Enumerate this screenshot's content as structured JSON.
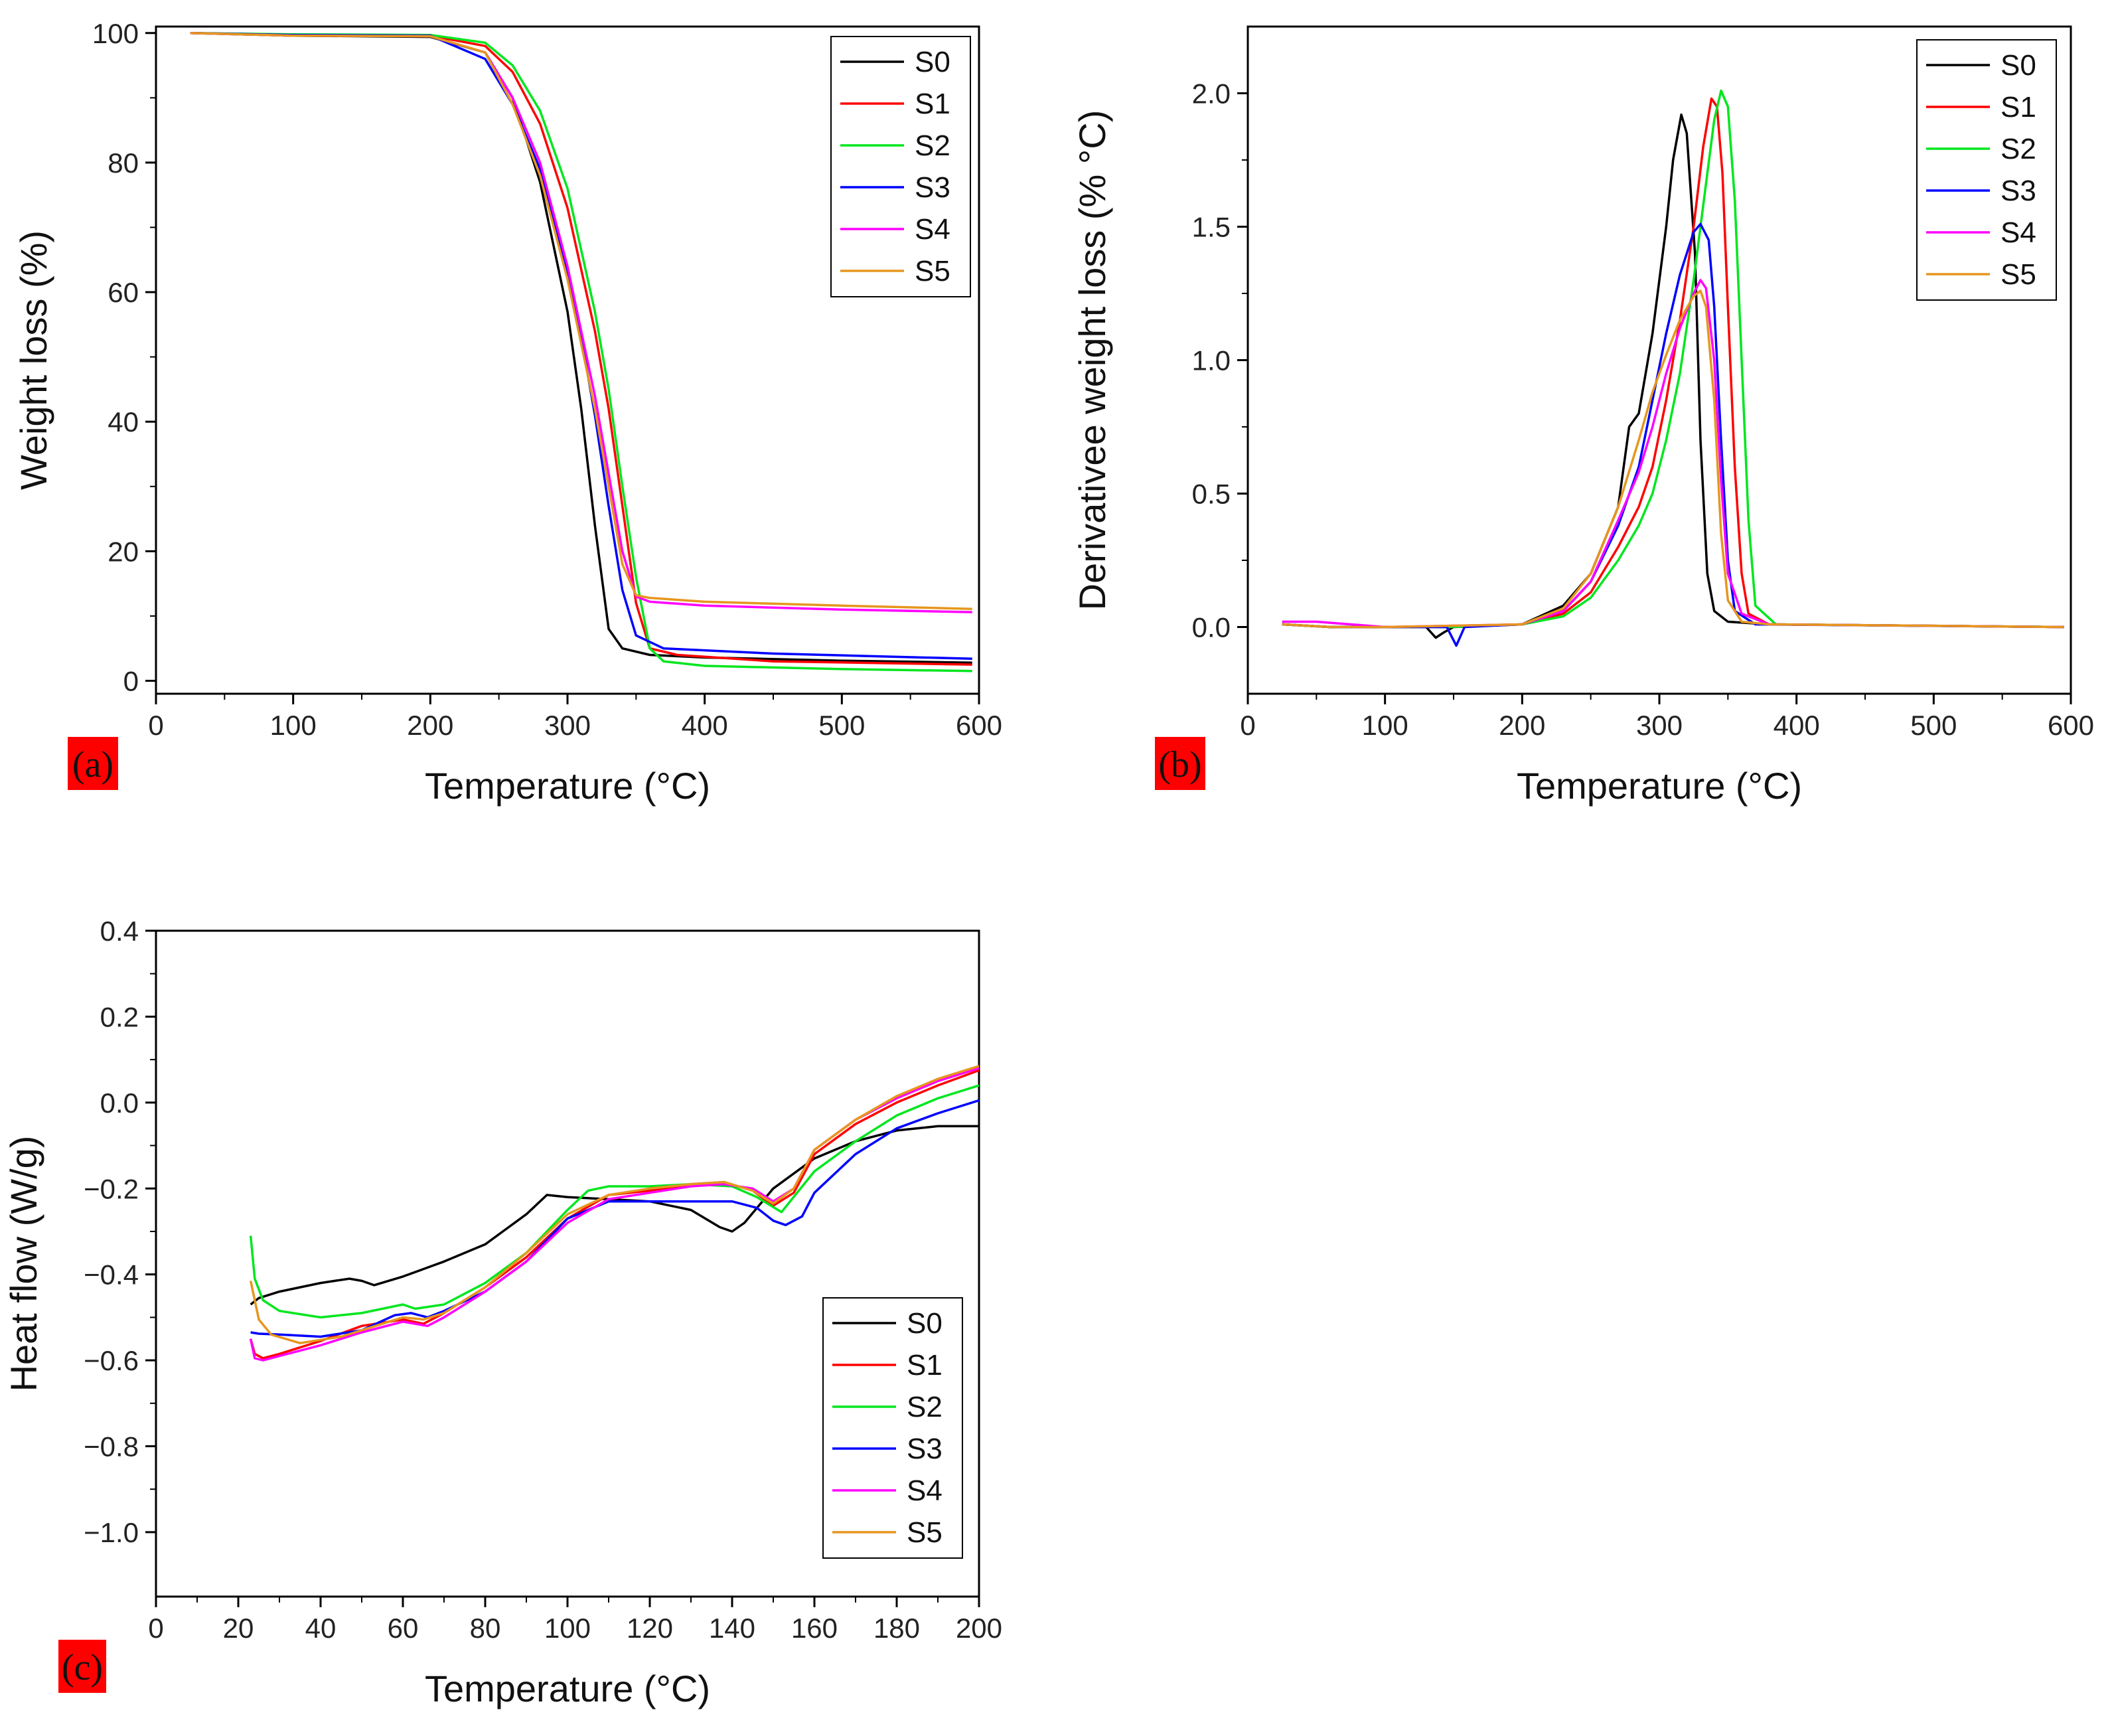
{
  "colors": {
    "S0": "#000000",
    "S1": "#ff0000",
    "S2": "#00e61e",
    "S3": "#0000ff",
    "S4": "#ff00ff",
    "S5": "#e6961e",
    "panel_label_bg": "#ff0000"
  },
  "chart_data": [
    {
      "type": "line",
      "panel_label": "(a)",
      "xlabel": "Temperature (°C)",
      "ylabel": "Weight loss (%)",
      "xlim": [
        0,
        600
      ],
      "ylim": [
        -2,
        101
      ],
      "xticks": [
        0,
        100,
        200,
        300,
        400,
        500,
        600
      ],
      "yticks": [
        0,
        20,
        40,
        60,
        80,
        100
      ],
      "xticklabels": [
        "0",
        "100",
        "200",
        "300",
        "400",
        "500",
        "600"
      ],
      "yticklabels": [
        "0",
        "20",
        "40",
        "60",
        "80",
        "100"
      ],
      "legend_position": "top-right",
      "series": [
        {
          "name": "S0",
          "x": [
            25,
            100,
            200,
            240,
            260,
            280,
            300,
            310,
            320,
            330,
            340,
            360,
            400,
            500,
            595
          ],
          "y": [
            100,
            99.6,
            99.4,
            97,
            90,
            77,
            57,
            42,
            24,
            8,
            5,
            4,
            3.6,
            3.1,
            2.8
          ]
        },
        {
          "name": "S1",
          "x": [
            25,
            100,
            200,
            240,
            260,
            280,
            300,
            320,
            330,
            340,
            350,
            360,
            380,
            450,
            595
          ],
          "y": [
            100,
            99.7,
            99.6,
            98,
            94,
            86,
            73,
            54,
            42,
            27,
            12,
            5,
            4,
            3,
            2.5
          ]
        },
        {
          "name": "S2",
          "x": [
            25,
            100,
            200,
            240,
            260,
            280,
            300,
            320,
            330,
            340,
            350,
            360,
            370,
            400,
            500,
            595
          ],
          "y": [
            100,
            99.8,
            99.7,
            98.5,
            95,
            88,
            76,
            57,
            45,
            30,
            16,
            5,
            3,
            2.3,
            1.8,
            1.5
          ]
        },
        {
          "name": "S3",
          "x": [
            25,
            100,
            200,
            240,
            260,
            280,
            300,
            310,
            320,
            330,
            340,
            350,
            370,
            450,
            595
          ],
          "y": [
            100,
            99.7,
            99.6,
            96,
            89,
            79,
            63,
            53,
            41,
            27,
            14,
            7,
            5,
            4.2,
            3.4
          ]
        },
        {
          "name": "S4",
          "x": [
            25,
            100,
            200,
            240,
            260,
            280,
            300,
            320,
            330,
            340,
            350,
            360,
            400,
            500,
            595
          ],
          "y": [
            100,
            99.6,
            99.5,
            97,
            90,
            80,
            64,
            44,
            32,
            20,
            13,
            12.2,
            11.6,
            11,
            10.6
          ]
        },
        {
          "name": "S5",
          "x": [
            25,
            100,
            200,
            240,
            260,
            280,
            300,
            320,
            330,
            340,
            350,
            360,
            400,
            500,
            595
          ],
          "y": [
            100,
            99.6,
            99.5,
            97,
            89,
            78,
            62,
            42,
            30,
            18,
            13.2,
            12.8,
            12.2,
            11.6,
            11.1
          ]
        }
      ]
    },
    {
      "type": "line",
      "panel_label": "(b)",
      "xlabel": "Temperature (°C)",
      "ylabel": "Derivativee weight loss (% °C)",
      "xlim": [
        0,
        600
      ],
      "ylim": [
        -0.25,
        2.25
      ],
      "xticks": [
        0,
        100,
        200,
        300,
        400,
        500,
        600
      ],
      "yticks": [
        0,
        0.5,
        1.0,
        1.5,
        2.0
      ],
      "xticklabels": [
        "0",
        "100",
        "200",
        "300",
        "400",
        "500",
        "600"
      ],
      "yticklabels": [
        "0.0",
        "0.5",
        "1.0",
        "1.5",
        "2.0"
      ],
      "legend_position": "top-right",
      "series": [
        {
          "name": "S0",
          "x": [
            25,
            60,
            100,
            130,
            137,
            143,
            150,
            200,
            230,
            250,
            270,
            278,
            285,
            295,
            305,
            310,
            316,
            320,
            326,
            330,
            335,
            340,
            350,
            380,
            595
          ],
          "y": [
            0.01,
            0.0,
            0.0,
            0.0,
            -0.04,
            -0.02,
            0.0,
            0.01,
            0.08,
            0.2,
            0.45,
            0.75,
            0.8,
            1.1,
            1.5,
            1.75,
            1.92,
            1.85,
            1.4,
            0.7,
            0.2,
            0.06,
            0.02,
            0.01,
            0.0
          ]
        },
        {
          "name": "S1",
          "x": [
            25,
            60,
            100,
            150,
            200,
            230,
            250,
            270,
            285,
            295,
            305,
            315,
            325,
            332,
            338,
            342,
            346,
            350,
            355,
            360,
            365,
            380,
            595
          ],
          "y": [
            0.01,
            0.0,
            0.0,
            0.0,
            0.01,
            0.05,
            0.13,
            0.3,
            0.45,
            0.6,
            0.85,
            1.15,
            1.5,
            1.8,
            1.98,
            1.95,
            1.7,
            1.2,
            0.6,
            0.2,
            0.05,
            0.01,
            0.0
          ]
        },
        {
          "name": "S2",
          "x": [
            25,
            60,
            100,
            150,
            200,
            230,
            250,
            270,
            285,
            295,
            305,
            315,
            325,
            335,
            340,
            345,
            350,
            355,
            360,
            365,
            370,
            385,
            595
          ],
          "y": [
            0.01,
            0.0,
            0.0,
            0.0,
            0.01,
            0.04,
            0.11,
            0.25,
            0.38,
            0.5,
            0.7,
            0.95,
            1.3,
            1.7,
            1.9,
            2.01,
            1.95,
            1.6,
            1.0,
            0.4,
            0.08,
            0.01,
            0.0
          ]
        },
        {
          "name": "S3",
          "x": [
            25,
            60,
            100,
            145,
            152,
            158,
            200,
            230,
            250,
            270,
            285,
            295,
            305,
            315,
            325,
            330,
            336,
            340,
            345,
            350,
            355,
            370,
            595
          ],
          "y": [
            0.01,
            0.0,
            0.0,
            0.0,
            -0.07,
            0.0,
            0.01,
            0.06,
            0.17,
            0.38,
            0.6,
            0.85,
            1.1,
            1.32,
            1.48,
            1.51,
            1.45,
            1.2,
            0.7,
            0.25,
            0.06,
            0.01,
            0.0
          ]
        },
        {
          "name": "S4",
          "x": [
            25,
            50,
            100,
            200,
            230,
            250,
            270,
            285,
            295,
            305,
            315,
            325,
            330,
            334,
            340,
            345,
            350,
            360,
            380,
            595
          ],
          "y": [
            0.02,
            0.02,
            0.0,
            0.01,
            0.06,
            0.17,
            0.4,
            0.58,
            0.75,
            0.95,
            1.12,
            1.25,
            1.3,
            1.27,
            1.0,
            0.55,
            0.2,
            0.05,
            0.01,
            0.0
          ]
        },
        {
          "name": "S5",
          "x": [
            25,
            60,
            100,
            200,
            230,
            250,
            270,
            285,
            295,
            305,
            315,
            325,
            330,
            334,
            340,
            345,
            350,
            360,
            380,
            595
          ],
          "y": [
            0.01,
            0.0,
            0.0,
            0.01,
            0.07,
            0.2,
            0.45,
            0.7,
            0.88,
            1.02,
            1.15,
            1.24,
            1.26,
            1.2,
            0.85,
            0.35,
            0.1,
            0.02,
            0.01,
            0.0
          ]
        }
      ]
    },
    {
      "type": "line",
      "panel_label": "(c)",
      "xlabel": "Temperature (°C)",
      "ylabel": "Heat flow (W/g)",
      "xlim": [
        0,
        200
      ],
      "ylim": [
        -1.15,
        0.4
      ],
      "xticks": [
        0,
        20,
        40,
        60,
        80,
        100,
        120,
        140,
        160,
        180,
        200
      ],
      "yticks": [
        -1.0,
        -0.8,
        -0.6,
        -0.4,
        -0.2,
        0.0,
        0.2,
        0.4
      ],
      "xticklabels": [
        "0",
        "20",
        "40",
        "60",
        "80",
        "100",
        "120",
        "140",
        "160",
        "180",
        "200"
      ],
      "yticklabels": [
        "−1.0",
        "−0.8",
        "−0.6",
        "−0.4",
        "−0.2",
        "0.0",
        "0.2",
        "0.4"
      ],
      "legend_position": "bottom-right",
      "series": [
        {
          "name": "S0",
          "x": [
            23,
            25,
            30,
            40,
            47,
            50,
            53,
            60,
            70,
            80,
            90,
            95,
            100,
            110,
            120,
            130,
            137,
            140,
            143,
            150,
            160,
            170,
            180,
            190,
            200
          ],
          "y": [
            -0.47,
            -0.455,
            -0.44,
            -0.42,
            -0.41,
            -0.415,
            -0.425,
            -0.405,
            -0.37,
            -0.33,
            -0.26,
            -0.215,
            -0.22,
            -0.225,
            -0.23,
            -0.25,
            -0.29,
            -0.3,
            -0.28,
            -0.2,
            -0.13,
            -0.09,
            -0.065,
            -0.055,
            -0.055
          ]
        },
        {
          "name": "S1",
          "x": [
            23,
            24,
            26,
            30,
            40,
            50,
            60,
            65,
            70,
            80,
            90,
            100,
            110,
            120,
            130,
            138,
            145,
            150,
            155,
            160,
            170,
            180,
            190,
            200
          ],
          "y": [
            -0.55,
            -0.585,
            -0.595,
            -0.585,
            -0.555,
            -0.52,
            -0.505,
            -0.515,
            -0.49,
            -0.43,
            -0.36,
            -0.27,
            -0.215,
            -0.205,
            -0.19,
            -0.185,
            -0.205,
            -0.24,
            -0.21,
            -0.12,
            -0.05,
            0.0,
            0.04,
            0.075
          ]
        },
        {
          "name": "S2",
          "x": [
            23,
            24,
            26,
            30,
            40,
            50,
            60,
            63,
            70,
            80,
            90,
            100,
            105,
            110,
            120,
            130,
            140,
            146,
            152,
            160,
            170,
            180,
            190,
            200
          ],
          "y": [
            -0.31,
            -0.41,
            -0.46,
            -0.485,
            -0.5,
            -0.49,
            -0.47,
            -0.48,
            -0.47,
            -0.42,
            -0.35,
            -0.25,
            -0.205,
            -0.195,
            -0.195,
            -0.19,
            -0.195,
            -0.22,
            -0.255,
            -0.16,
            -0.09,
            -0.03,
            0.01,
            0.04
          ]
        },
        {
          "name": "S3",
          "x": [
            23,
            25,
            30,
            40,
            50,
            58,
            62,
            66,
            70,
            80,
            90,
            100,
            110,
            120,
            130,
            140,
            146,
            150,
            153,
            157,
            160,
            170,
            180,
            190,
            200
          ],
          "y": [
            -0.535,
            -0.538,
            -0.54,
            -0.545,
            -0.53,
            -0.495,
            -0.49,
            -0.5,
            -0.485,
            -0.44,
            -0.37,
            -0.27,
            -0.23,
            -0.23,
            -0.23,
            -0.23,
            -0.245,
            -0.275,
            -0.285,
            -0.265,
            -0.21,
            -0.12,
            -0.06,
            -0.025,
            0.005
          ]
        },
        {
          "name": "S4",
          "x": [
            23,
            24,
            26,
            30,
            40,
            50,
            60,
            66,
            70,
            80,
            90,
            100,
            110,
            120,
            130,
            138,
            145,
            150,
            155,
            160,
            170,
            180,
            190,
            200
          ],
          "y": [
            -0.55,
            -0.595,
            -0.6,
            -0.59,
            -0.565,
            -0.535,
            -0.51,
            -0.52,
            -0.5,
            -0.44,
            -0.37,
            -0.28,
            -0.225,
            -0.21,
            -0.195,
            -0.19,
            -0.2,
            -0.23,
            -0.2,
            -0.11,
            -0.04,
            0.01,
            0.05,
            0.08
          ]
        },
        {
          "name": "S5",
          "x": [
            23,
            25,
            28,
            35,
            45,
            55,
            60,
            65,
            70,
            80,
            90,
            100,
            110,
            120,
            130,
            138,
            145,
            150,
            155,
            160,
            170,
            180,
            190,
            200
          ],
          "y": [
            -0.415,
            -0.505,
            -0.54,
            -0.56,
            -0.545,
            -0.515,
            -0.5,
            -0.505,
            -0.49,
            -0.43,
            -0.35,
            -0.26,
            -0.215,
            -0.2,
            -0.19,
            -0.185,
            -0.205,
            -0.235,
            -0.2,
            -0.11,
            -0.04,
            0.015,
            0.055,
            0.085
          ]
        }
      ]
    }
  ]
}
